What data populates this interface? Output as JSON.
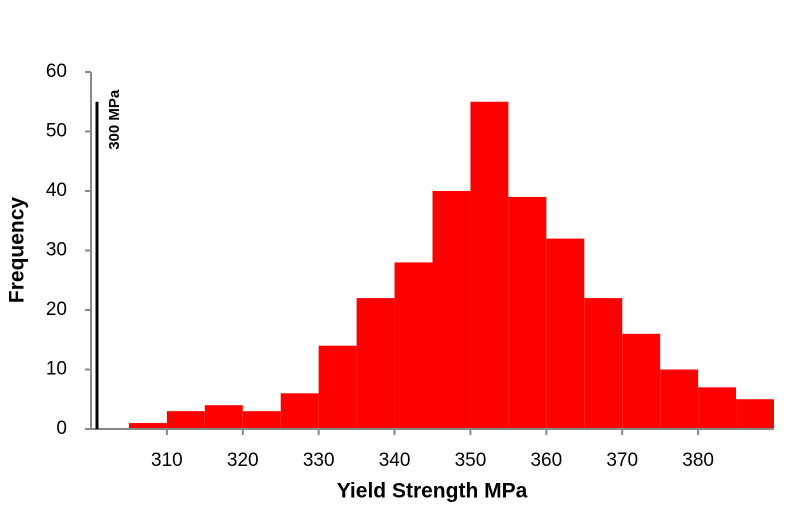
{
  "chart_data": {
    "type": "histogram",
    "xlabel": "Yield Strength MPa",
    "ylabel": "Frequency",
    "bins": [
      305,
      310,
      315,
      320,
      325,
      330,
      335,
      340,
      345,
      350,
      355,
      360,
      365,
      370,
      375,
      380,
      385,
      390
    ],
    "values": [
      1,
      3,
      4,
      3,
      6,
      14,
      22,
      28,
      40,
      55,
      39,
      32,
      22,
      16,
      10,
      7,
      5
    ],
    "color": "#ff0000",
    "xlim": [
      300,
      390
    ],
    "xticks": [
      310,
      320,
      330,
      340,
      350,
      360,
      370,
      380
    ],
    "ylim": [
      0,
      60
    ],
    "yticks": [
      0,
      10,
      20,
      30,
      40,
      50,
      60
    ],
    "grid": false,
    "annotation": {
      "text": "300 MPa",
      "x": 300,
      "y": 55
    }
  }
}
